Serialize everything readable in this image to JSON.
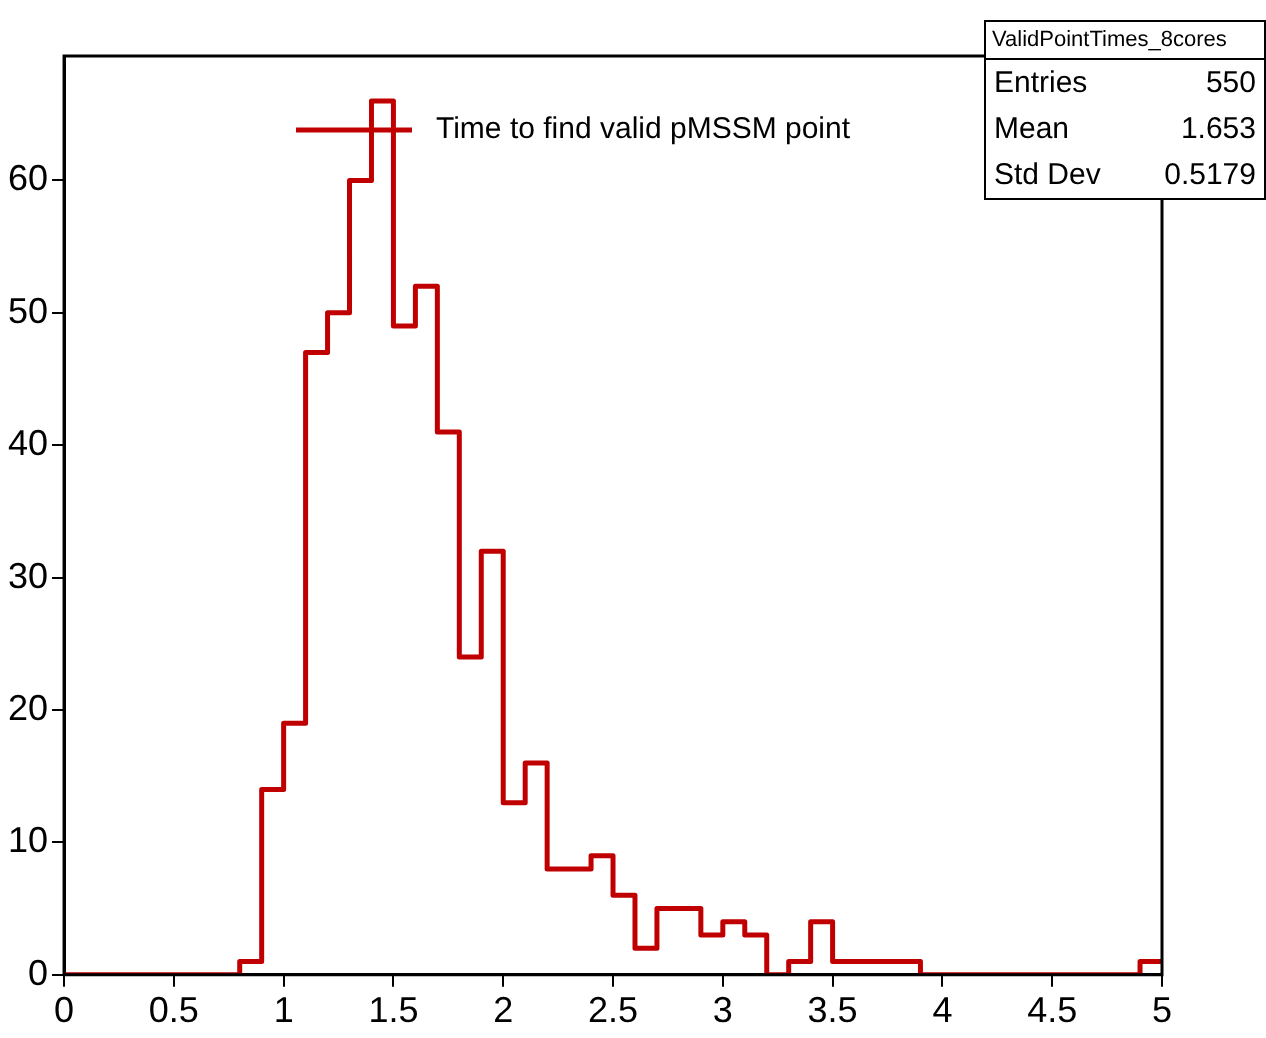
{
  "chart_data": {
    "type": "histogram",
    "bins": [
      0,
      0.1,
      0.2,
      0.3,
      0.4,
      0.5,
      0.6,
      0.7,
      0.8,
      0.9,
      1,
      1.1,
      1.2,
      1.3,
      1.4,
      1.5,
      1.6,
      1.7,
      1.8,
      1.9,
      2,
      2.1,
      2.2,
      2.3,
      2.4,
      2.5,
      2.6,
      2.7,
      2.8,
      2.9,
      3,
      3.1,
      3.2,
      3.3,
      3.4,
      3.5,
      3.6,
      3.7,
      3.8,
      3.9,
      4,
      4.1,
      4.2,
      4.3,
      4.4,
      4.5,
      4.6,
      4.7,
      4.8,
      4.9,
      5
    ],
    "series": [
      {
        "name": "Time to find valid pMSSM point",
        "color": "#c00000",
        "values": [
          0,
          0,
          0,
          0,
          0,
          0,
          0,
          0,
          1,
          14,
          19,
          47,
          50,
          60,
          66,
          49,
          52,
          41,
          24,
          32,
          13,
          16,
          8,
          8,
          9,
          6,
          2,
          5,
          5,
          3,
          4,
          3,
          0,
          1,
          4,
          1,
          1,
          1,
          1,
          0,
          0,
          0,
          0,
          0,
          0,
          0,
          0,
          0,
          0,
          1
        ]
      }
    ],
    "xlim": [
      0,
      5
    ],
    "xticks": [
      0,
      0.5,
      1,
      1.5,
      2,
      2.5,
      3,
      3.5,
      4,
      4.5,
      5
    ],
    "ylim": [
      0,
      69.4
    ],
    "yticks": [
      0,
      10,
      20,
      30,
      40,
      50,
      60
    ],
    "legend": "top",
    "grid": false,
    "annotations": [
      "ValidPointTimes_8cores",
      "Entries",
      "550",
      "Mean",
      "1.653",
      "Std Dev",
      "0.5179"
    ]
  }
}
